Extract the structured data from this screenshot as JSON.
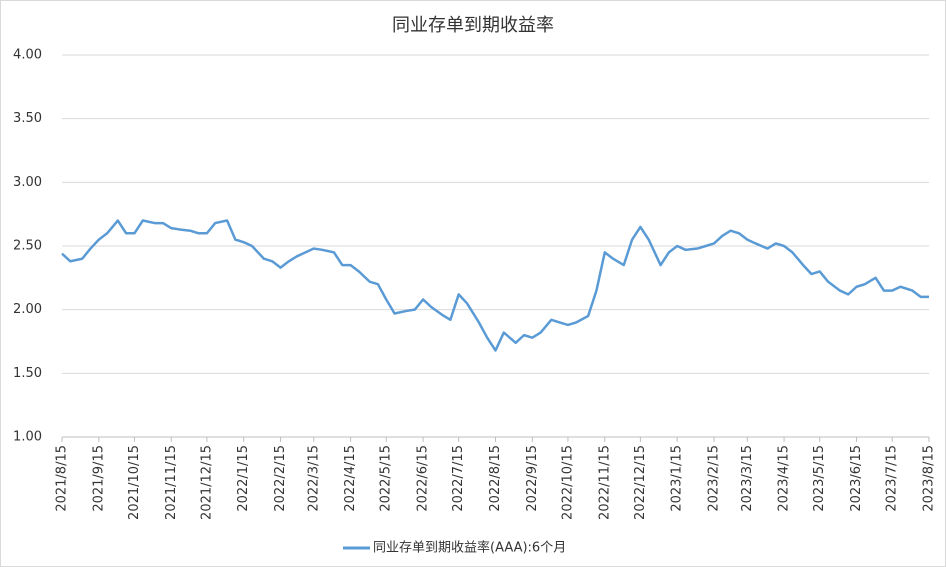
{
  "chart_data": {
    "type": "line",
    "title": "同业存单到期收益率",
    "x": [
      "2021/8/15",
      "2021/8/22",
      "2021/9/1",
      "2021/9/8",
      "2021/9/15",
      "2021/9/22",
      "2021/10/1",
      "2021/10/8",
      "2021/10/15",
      "2021/10/22",
      "2021/11/1",
      "2021/11/8",
      "2021/11/15",
      "2021/11/22",
      "2021/12/1",
      "2021/12/8",
      "2021/12/15",
      "2021/12/22",
      "2022/1/1",
      "2022/1/8",
      "2022/1/15",
      "2022/1/22",
      "2022/2/1",
      "2022/2/8",
      "2022/2/15",
      "2022/2/22",
      "2022/3/1",
      "2022/3/8",
      "2022/3/15",
      "2022/3/22",
      "2022/4/1",
      "2022/4/8",
      "2022/4/15",
      "2022/4/22",
      "2022/5/1",
      "2022/5/8",
      "2022/5/15",
      "2022/5/22",
      "2022/6/1",
      "2022/6/8",
      "2022/6/15",
      "2022/6/22",
      "2022/7/1",
      "2022/7/8",
      "2022/7/15",
      "2022/7/22",
      "2022/8/1",
      "2022/8/8",
      "2022/8/15",
      "2022/8/22",
      "2022/9/1",
      "2022/9/8",
      "2022/9/15",
      "2022/9/22",
      "2022/10/1",
      "2022/10/8",
      "2022/10/15",
      "2022/10/22",
      "2022/11/1",
      "2022/11/8",
      "2022/11/15",
      "2022/11/22",
      "2022/12/1",
      "2022/12/8",
      "2022/12/15",
      "2022/12/22",
      "2023/1/1",
      "2023/1/8",
      "2023/1/15",
      "2023/1/22",
      "2023/2/1",
      "2023/2/8",
      "2023/2/15",
      "2023/2/22",
      "2023/3/1",
      "2023/3/8",
      "2023/3/15",
      "2023/3/22",
      "2023/4/1",
      "2023/4/8",
      "2023/4/15",
      "2023/4/22",
      "2023/5/1",
      "2023/5/8",
      "2023/5/15",
      "2023/5/22",
      "2023/6/1",
      "2023/6/8",
      "2023/6/15",
      "2023/6/22",
      "2023/7/1",
      "2023/7/8",
      "2023/7/15",
      "2023/7/22",
      "2023/8/1",
      "2023/8/8",
      "2023/8/15"
    ],
    "series": [
      {
        "name": "同业存单到期收益率(AAA):6个月",
        "color": "#5b9bd5",
        "values": [
          2.44,
          2.38,
          2.4,
          2.48,
          2.55,
          2.6,
          2.7,
          2.6,
          2.6,
          2.7,
          2.68,
          2.68,
          2.64,
          2.63,
          2.62,
          2.6,
          2.6,
          2.68,
          2.7,
          2.55,
          2.53,
          2.5,
          2.4,
          2.38,
          2.33,
          2.38,
          2.42,
          2.45,
          2.48,
          2.47,
          2.45,
          2.35,
          2.35,
          2.3,
          2.22,
          2.2,
          2.08,
          1.97,
          1.99,
          2.0,
          2.08,
          2.02,
          1.96,
          1.92,
          2.12,
          2.05,
          1.9,
          1.78,
          1.68,
          1.82,
          1.74,
          1.8,
          1.78,
          1.82,
          1.92,
          1.9,
          1.88,
          1.9,
          1.95,
          2.15,
          2.45,
          2.4,
          2.35,
          2.55,
          2.65,
          2.55,
          2.35,
          2.45,
          2.5,
          2.47,
          2.48,
          2.5,
          2.52,
          2.58,
          2.62,
          2.6,
          2.55,
          2.52,
          2.48,
          2.52,
          2.5,
          2.45,
          2.35,
          2.28,
          2.3,
          2.22,
          2.15,
          2.12,
          2.18,
          2.2,
          2.25,
          2.15,
          2.15,
          2.18,
          2.15,
          2.1,
          2.1
        ]
      }
    ],
    "ylim": [
      1,
      4
    ],
    "yticks": [
      {
        "value": 1,
        "label": "1.00"
      },
      {
        "value": 1.5,
        "label": "1.50"
      },
      {
        "value": 2,
        "label": "2.00"
      },
      {
        "value": 2.5,
        "label": "2.50"
      },
      {
        "value": 3,
        "label": "3.00"
      },
      {
        "value": 3.5,
        "label": "3.50"
      },
      {
        "value": 4,
        "label": "4.00"
      }
    ],
    "xlim": [
      "2021/8/15",
      "2023/8/15"
    ],
    "xticks": [
      "2021/8/15",
      "2021/9/15",
      "2021/10/15",
      "2021/11/15",
      "2021/12/15",
      "2022/1/15",
      "2022/2/15",
      "2022/3/15",
      "2022/4/15",
      "2022/5/15",
      "2022/6/15",
      "2022/7/15",
      "2022/8/15",
      "2022/9/15",
      "2022/10/15",
      "2022/11/15",
      "2022/12/15",
      "2023/1/15",
      "2023/2/15",
      "2023/3/15",
      "2023/4/15",
      "2023/5/15",
      "2023/6/15",
      "2023/7/15",
      "2023/8/15"
    ],
    "grid": true,
    "legend": "bottom"
  }
}
